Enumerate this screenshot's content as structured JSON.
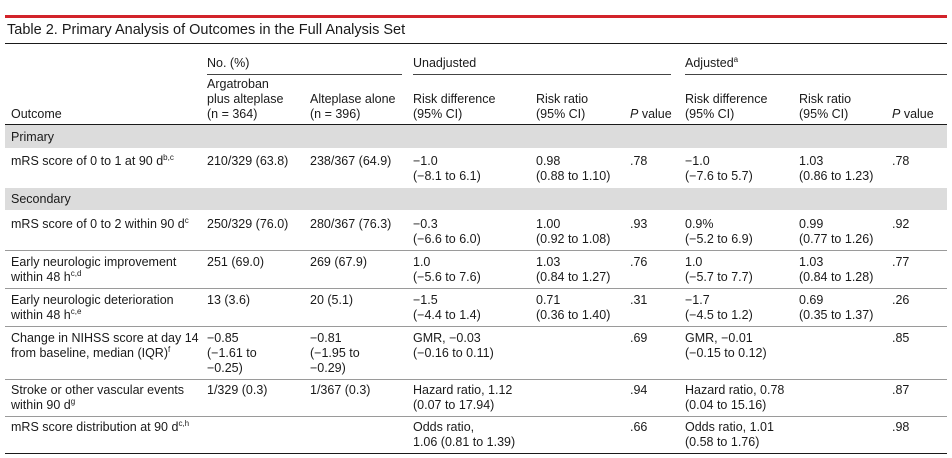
{
  "table": {
    "title": "Table 2. Primary Analysis of Outcomes in the Full Analysis Set",
    "group_headers": {
      "n": "No. (%)",
      "unadjusted": "Unadjusted",
      "adjusted": "Adjusted",
      "adjusted_note": "a"
    },
    "col_headers": {
      "outcome": "Outcome",
      "argatroban": [
        "Argatroban",
        "plus alteplase",
        "(n = 364)"
      ],
      "alteplase": [
        "",
        "",
        "Alteplase alone (n = 396)"
      ],
      "u_rd": [
        "Risk difference",
        "(95% CI)"
      ],
      "u_rr": [
        "Risk ratio",
        "(95% CI)"
      ],
      "u_p": [
        "P",
        "value"
      ],
      "a_rd": [
        "Risk difference",
        "(95% CI)"
      ],
      "a_rr": [
        "Risk ratio",
        "(95% CI)"
      ],
      "a_p": [
        "P",
        "value"
      ]
    },
    "sections": {
      "primary": "Primary",
      "secondary": "Secondary"
    },
    "rows": [
      {
        "outcome": [
          "mRS score of 0 to 1 at 90 d"
        ],
        "note": "b,c",
        "arg": [
          "210/329 (63.8)"
        ],
        "alt": [
          "238/367 (64.9)"
        ],
        "u_rd": [
          "−1.0",
          "(−8.1 to 6.1)"
        ],
        "u_rr": [
          "0.98",
          "(0.88 to 1.10)"
        ],
        "u_p": ".78",
        "a_rd": [
          "−1.0",
          "(−7.6 to 5.7)"
        ],
        "a_rr": [
          "1.03",
          "(0.86 to 1.23)"
        ],
        "a_p": ".78"
      },
      {
        "outcome": [
          "mRS score of 0 to 2 within 90 d"
        ],
        "note": "c",
        "arg": [
          "250/329 (76.0)"
        ],
        "alt": [
          "280/367 (76.3)"
        ],
        "u_rd": [
          "−0.3",
          "(−6.6 to 6.0)"
        ],
        "u_rr": [
          "1.00",
          "(0.92 to 1.08)"
        ],
        "u_p": ".93",
        "a_rd": [
          "0.9%",
          "(−5.2 to 6.9)"
        ],
        "a_rr": [
          "0.99",
          "(0.77 to 1.26)"
        ],
        "a_p": ".92"
      },
      {
        "outcome": [
          "Early neurologic improvement",
          "within 48 h"
        ],
        "note": "c,d",
        "arg": [
          "251 (69.0)"
        ],
        "alt": [
          "269 (67.9)"
        ],
        "u_rd": [
          "1.0",
          "(−5.6 to 7.6)"
        ],
        "u_rr": [
          "1.03",
          "(0.84 to 1.27)"
        ],
        "u_p": ".76",
        "a_rd": [
          "1.0",
          "(−5.7 to 7.7)"
        ],
        "a_rr": [
          "1.03",
          "(0.84 to 1.28)"
        ],
        "a_p": ".77"
      },
      {
        "outcome": [
          "Early neurologic deterioration",
          "within 48 h"
        ],
        "note": "c,e",
        "arg": [
          "13 (3.6)"
        ],
        "alt": [
          "20 (5.1)"
        ],
        "u_rd": [
          "−1.5",
          "(−4.4 to 1.4)"
        ],
        "u_rr": [
          "0.71",
          "(0.36 to 1.40)"
        ],
        "u_p": ".31",
        "a_rd": [
          "−1.7",
          "(−4.5 to 1.2)"
        ],
        "a_rr": [
          "0.69",
          "(0.35 to 1.37)"
        ],
        "a_p": ".26"
      },
      {
        "outcome": [
          "Change in NIHSS score at day 14",
          "from baseline, median (IQR)"
        ],
        "note": "f",
        "arg": [
          "−0.85",
          "(−1.61 to",
          "−0.25)"
        ],
        "alt": [
          "−0.81",
          "(−1.95 to",
          "−0.29)"
        ],
        "u_rd": [
          "GMR, −0.03",
          "(−0.16 to 0.11)"
        ],
        "u_rr": [
          "",
          ""
        ],
        "u_p": ".69",
        "a_rd": [
          "GMR, −0.01",
          "(−0.15 to 0.12)"
        ],
        "a_rr": [
          "",
          ""
        ],
        "a_p": ".85"
      },
      {
        "outcome": [
          "Stroke or other vascular events",
          "within 90 d"
        ],
        "note": "g",
        "arg": [
          "1/329 (0.3)"
        ],
        "alt": [
          "1/367 (0.3)"
        ],
        "u_rd": [
          "Hazard ratio, 1.12",
          "(0.07 to 17.94)"
        ],
        "u_rr": [
          "",
          ""
        ],
        "u_p": ".94",
        "a_rd": [
          "Hazard ratio, 0.78",
          "(0.04 to 15.16)"
        ],
        "a_rr": [
          "",
          ""
        ],
        "a_p": ".87"
      },
      {
        "outcome": [
          "mRS score distribution at 90 d"
        ],
        "note": "c,h",
        "arg": [
          ""
        ],
        "alt": [
          ""
        ],
        "u_rd": [
          "Odds ratio,",
          "1.06 (0.81 to 1.39)"
        ],
        "u_rr": [
          "",
          ""
        ],
        "u_p": ".66",
        "a_rd": [
          "Odds ratio, 1.01",
          "(0.58 to 1.76)"
        ],
        "a_rr": [
          "",
          ""
        ],
        "a_p": ".98"
      }
    ]
  }
}
